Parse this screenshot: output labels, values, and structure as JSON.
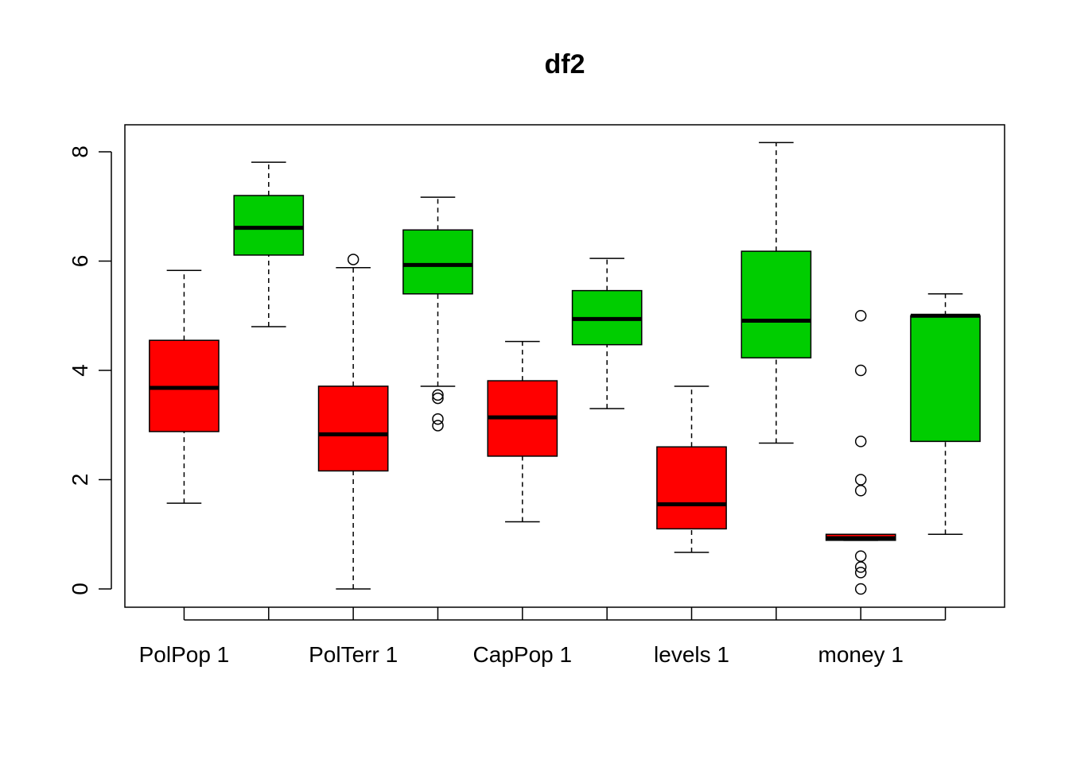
{
  "chart_data": {
    "type": "boxplot",
    "title": "df2",
    "xlabel": "",
    "ylabel": "",
    "ylim": [
      0,
      8
    ],
    "yticks": [
      0,
      2,
      4,
      6,
      8
    ],
    "xtick_labels": [
      "PolPop 1",
      "PolTerr 1",
      "CapPop 1",
      "levels 1",
      "money 1"
    ],
    "grid": false,
    "legend": "none",
    "colors": {
      "red": "#ff0000",
      "green": "#00cd00",
      "median": "#000000"
    },
    "boxes": [
      {
        "group": 1,
        "color": "red",
        "whisker_low": 1.57,
        "q1": 2.88,
        "median": 3.68,
        "q3": 4.55,
        "whisker_high": 5.83,
        "outliers": []
      },
      {
        "group": 2,
        "color": "green",
        "whisker_low": 4.8,
        "q1": 6.11,
        "median": 6.61,
        "q3": 7.2,
        "whisker_high": 7.81,
        "outliers": []
      },
      {
        "group": 3,
        "color": "red",
        "whisker_low": 0.0,
        "q1": 2.16,
        "median": 2.83,
        "q3": 3.71,
        "whisker_high": 5.88,
        "outliers": [
          6.03
        ]
      },
      {
        "group": 4,
        "color": "green",
        "whisker_low": 3.71,
        "q1": 5.4,
        "median": 5.93,
        "q3": 6.57,
        "whisker_high": 7.17,
        "outliers": [
          3.55,
          3.49,
          3.11,
          2.99
        ]
      },
      {
        "group": 5,
        "color": "red",
        "whisker_low": 1.23,
        "q1": 2.43,
        "median": 3.14,
        "q3": 3.81,
        "whisker_high": 4.53,
        "outliers": []
      },
      {
        "group": 6,
        "color": "green",
        "whisker_low": 3.3,
        "q1": 4.47,
        "median": 4.94,
        "q3": 5.46,
        "whisker_high": 6.05,
        "outliers": []
      },
      {
        "group": 7,
        "color": "red",
        "whisker_low": 0.67,
        "q1": 1.1,
        "median": 1.55,
        "q3": 2.6,
        "whisker_high": 3.71,
        "outliers": []
      },
      {
        "group": 8,
        "color": "green",
        "whisker_low": 2.67,
        "q1": 4.23,
        "median": 4.91,
        "q3": 6.18,
        "whisker_high": 8.17,
        "outliers": []
      },
      {
        "group": 9,
        "color": "red",
        "whisker_low": 0.89,
        "q1": 0.89,
        "median": 0.93,
        "q3": 1.0,
        "whisker_high": 1.0,
        "outliers": [
          5.0,
          4.0,
          2.7,
          2.0,
          1.8,
          0.6,
          0.4,
          0.3,
          0.0
        ]
      },
      {
        "group": 10,
        "color": "green",
        "whisker_low": 1.0,
        "q1": 2.7,
        "median": 5.0,
        "q3": 5.0,
        "whisker_high": 5.4,
        "outliers": []
      }
    ]
  }
}
